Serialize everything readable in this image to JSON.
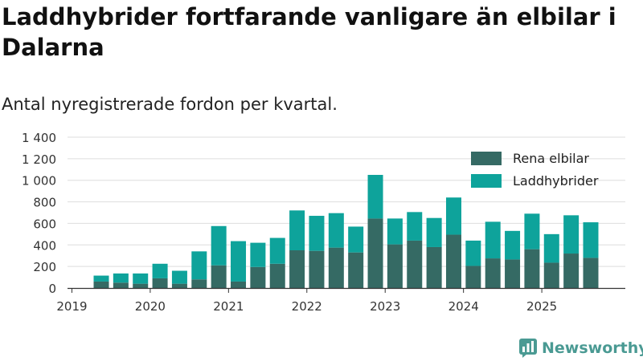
{
  "colors": {
    "elbil": "#356a64",
    "laddhybrid": "#0ea39b",
    "grid": "#dddddd",
    "axis": "#333333",
    "brand": "#4a9a93"
  },
  "brand": {
    "name": "Newsworthy"
  },
  "chart_data": {
    "type": "bar",
    "stacked": true,
    "title": "Laddhybrider fortfarande vanligare än elbilar i Dalarna",
    "subtitle": "Antal nyregistrerade fordon per kvartal.",
    "xlabel": "",
    "ylabel": "",
    "ylim": [
      0,
      1400
    ],
    "yticks": [
      0,
      200,
      400,
      600,
      800,
      1000,
      1200,
      1400
    ],
    "ytick_labels": [
      "0",
      "200",
      "400",
      "600",
      "800",
      "1 000",
      "1 200",
      "1 400"
    ],
    "xticks": [
      2019,
      2020,
      2021,
      2022,
      2023,
      2024,
      2025
    ],
    "xtick_labels": [
      "2019",
      "2020",
      "2021",
      "2022",
      "2023",
      "2024",
      "2025"
    ],
    "grid": true,
    "legend_position": "top-right",
    "categories": [
      "2019 Q2",
      "2019 Q3",
      "2019 Q4",
      "2020 Q1",
      "2020 Q2",
      "2020 Q3",
      "2020 Q4",
      "2021 Q1",
      "2021 Q2",
      "2021 Q3",
      "2021 Q4",
      "2022 Q1",
      "2022 Q2",
      "2022 Q3",
      "2022 Q4",
      "2023 Q1",
      "2023 Q2",
      "2023 Q3",
      "2023 Q4",
      "2024 Q1",
      "2024 Q2",
      "2024 Q3",
      "2024 Q4",
      "2025 Q1",
      "2025 Q2",
      "2025 Q3"
    ],
    "series": [
      {
        "name": "Rena elbilar",
        "values": [
          60,
          50,
          40,
          90,
          40,
          80,
          210,
          60,
          195,
          225,
          350,
          345,
          375,
          330,
          645,
          405,
          440,
          380,
          495,
          205,
          275,
          265,
          360,
          235,
          320,
          280
        ]
      },
      {
        "name": "Laddhybrider",
        "values": [
          55,
          85,
          95,
          135,
          120,
          260,
          365,
          375,
          225,
          240,
          370,
          325,
          320,
          240,
          405,
          240,
          265,
          270,
          345,
          235,
          340,
          265,
          330,
          265,
          355,
          330
        ]
      }
    ]
  }
}
